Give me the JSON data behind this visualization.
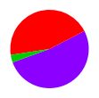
{
  "slices": [
    {
      "label": "Purple",
      "value": 331,
      "color": "#8B00FF"
    },
    {
      "label": "Red",
      "value": 285,
      "color": "#ff0000"
    },
    {
      "label": "Green",
      "value": 20,
      "color": "#00cc00"
    }
  ],
  "startangle": 200,
  "background_color": "#ffffff"
}
